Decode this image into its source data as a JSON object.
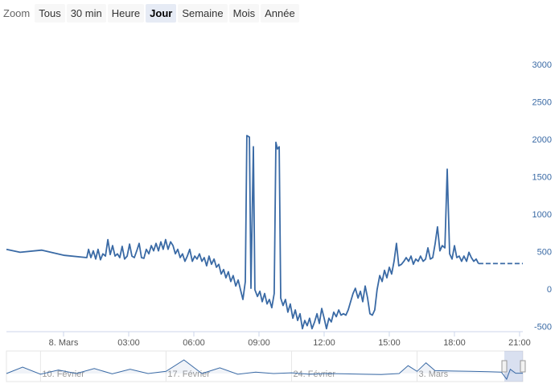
{
  "range_selector": {
    "label": "Zoom",
    "buttons": [
      "Tous",
      "30 min",
      "Heure",
      "Jour",
      "Semaine",
      "Mois",
      "Année"
    ],
    "selected": 3
  },
  "chart_data": {
    "type": "line",
    "xlim": [
      -2.63,
      21.15
    ],
    "xticks": [
      {
        "value": 0,
        "label": "8. Mars"
      },
      {
        "value": 3,
        "label": "03:00"
      },
      {
        "value": 6,
        "label": "06:00"
      },
      {
        "value": 9,
        "label": "09:00"
      },
      {
        "value": 12,
        "label": "12:00"
      },
      {
        "value": 15,
        "label": "15:00"
      },
      {
        "value": 18,
        "label": "18:00"
      },
      {
        "value": 21,
        "label": "21:00"
      }
    ],
    "ylim": [
      -560,
      3000
    ],
    "yticks": [
      -500,
      0,
      500,
      1000,
      1500,
      2000,
      2500,
      3000
    ],
    "series": [
      {
        "color": "#3a6aa5",
        "dash": false,
        "x": [
          -2.63,
          -2.0,
          -1.0,
          0.04,
          1.07,
          1.15,
          1.26,
          1.37,
          1.48,
          1.59,
          1.7,
          1.81,
          1.93,
          2.04,
          2.15,
          2.26,
          2.37,
          2.48,
          2.59,
          2.7,
          2.81,
          2.93,
          3.04,
          3.15,
          3.26,
          3.37,
          3.48,
          3.59,
          3.7,
          3.81,
          3.93,
          4.04,
          4.15,
          4.26,
          4.37,
          4.48,
          4.59,
          4.7,
          4.81,
          4.93,
          5.04,
          5.15,
          5.26,
          5.37,
          5.48,
          5.59,
          5.7,
          5.81,
          5.93,
          6.04,
          6.15,
          6.26,
          6.37,
          6.48,
          6.59,
          6.7,
          6.81,
          6.93,
          7.04,
          7.15,
          7.26,
          7.37,
          7.48,
          7.59,
          7.7,
          7.81,
          7.93,
          8.04,
          8.15,
          8.26,
          8.37,
          8.44,
          8.56,
          8.63,
          8.74,
          8.81,
          8.93,
          9.04,
          9.15,
          9.26,
          9.37,
          9.48,
          9.59,
          9.7,
          9.78,
          9.85,
          9.93,
          10.0,
          10.11,
          10.22,
          10.33,
          10.44,
          10.56,
          10.67,
          10.78,
          10.89,
          11.0,
          11.11,
          11.22,
          11.33,
          11.44,
          11.56,
          11.67,
          11.78,
          11.89,
          12.0,
          12.11,
          12.22,
          12.33,
          12.44,
          12.56,
          12.67,
          12.78,
          12.89,
          13.0,
          13.11,
          13.22,
          13.33,
          13.44,
          13.56,
          13.67,
          13.78,
          13.89,
          14.0,
          14.11,
          14.22,
          14.33,
          14.44,
          14.56,
          14.67,
          14.78,
          14.89,
          15.0,
          15.11,
          15.22,
          15.33,
          15.44,
          15.56,
          15.67,
          15.78,
          15.89,
          16.0,
          16.11,
          16.22,
          16.33,
          16.44,
          16.56,
          16.67,
          16.78,
          16.89,
          17.0,
          17.11,
          17.22,
          17.33,
          17.44,
          17.56,
          17.67,
          17.78,
          17.89,
          18.0,
          18.11,
          18.22,
          18.33,
          18.44,
          18.56,
          18.67,
          18.78,
          18.89,
          19.0,
          19.11
        ],
        "values": [
          540,
          500,
          530,
          460,
          430,
          540,
          430,
          520,
          410,
          540,
          400,
          480,
          450,
          670,
          470,
          590,
          450,
          480,
          430,
          580,
          410,
          450,
          610,
          450,
          430,
          520,
          620,
          430,
          420,
          540,
          480,
          590,
          520,
          620,
          520,
          640,
          540,
          670,
          540,
          640,
          590,
          480,
          540,
          430,
          480,
          380,
          450,
          540,
          380,
          450,
          410,
          480,
          380,
          430,
          320,
          450,
          340,
          410,
          300,
          340,
          210,
          270,
          160,
          240,
          110,
          190,
          50,
          130,
          0,
          -130,
          110,
          2060,
          2040,
          20,
          1910,
          0,
          -90,
          -20,
          -160,
          -50,
          -190,
          -130,
          -240,
          -50,
          1970,
          1880,
          1910,
          -110,
          -210,
          -130,
          -300,
          -190,
          -380,
          -270,
          -410,
          -320,
          -520,
          -410,
          -480,
          -380,
          -520,
          -430,
          -320,
          -450,
          -250,
          -380,
          -520,
          -380,
          -430,
          -300,
          -360,
          -270,
          -340,
          -320,
          -340,
          -270,
          -160,
          -50,
          20,
          -110,
          -20,
          -160,
          50,
          -110,
          -320,
          -340,
          -270,
          0,
          190,
          110,
          260,
          160,
          300,
          210,
          380,
          620,
          320,
          340,
          380,
          430,
          380,
          450,
          340,
          410,
          380,
          450,
          380,
          410,
          560,
          410,
          430,
          610,
          840,
          520,
          590,
          560,
          1610,
          480,
          410,
          590,
          430,
          450,
          380,
          450,
          380,
          500,
          430,
          380,
          410,
          350
        ]
      },
      {
        "color": "#3a6aa5",
        "dash": true,
        "x": [
          19.11,
          21.15
        ],
        "values": [
          350,
          350
        ]
      }
    ],
    "navigator": {
      "xlim": [
        -27.9,
        0.9
      ],
      "ylim": [
        -600,
        3000
      ],
      "xticks": [
        {
          "value": -26,
          "label": "10. Février"
        },
        {
          "value": -19,
          "label": "17. Février"
        },
        {
          "value": -12,
          "label": "24. Février"
        },
        {
          "value": -5,
          "label": "3. Mars"
        }
      ],
      "x": [
        -27.9,
        -27,
        -26,
        -25,
        -24,
        -23,
        -22,
        -21,
        -20,
        -19,
        -18,
        -17,
        -16,
        -15,
        -14,
        -13,
        -12,
        -11,
        -10,
        -9,
        -8,
        -7,
        -6,
        -5.5,
        -5,
        -4.5,
        -4,
        -3,
        -2,
        -1,
        -0.3,
        0,
        0.2,
        0.5,
        0.9
      ],
      "values": [
        300,
        1200,
        200,
        800,
        300,
        1000,
        250,
        900,
        300,
        600,
        2200,
        300,
        1100,
        200,
        500,
        300,
        400,
        200,
        300,
        250,
        200,
        150,
        300,
        1400,
        600,
        1800,
        700,
        650,
        600,
        550,
        500,
        -500,
        900,
        350,
        350
      ]
    }
  }
}
